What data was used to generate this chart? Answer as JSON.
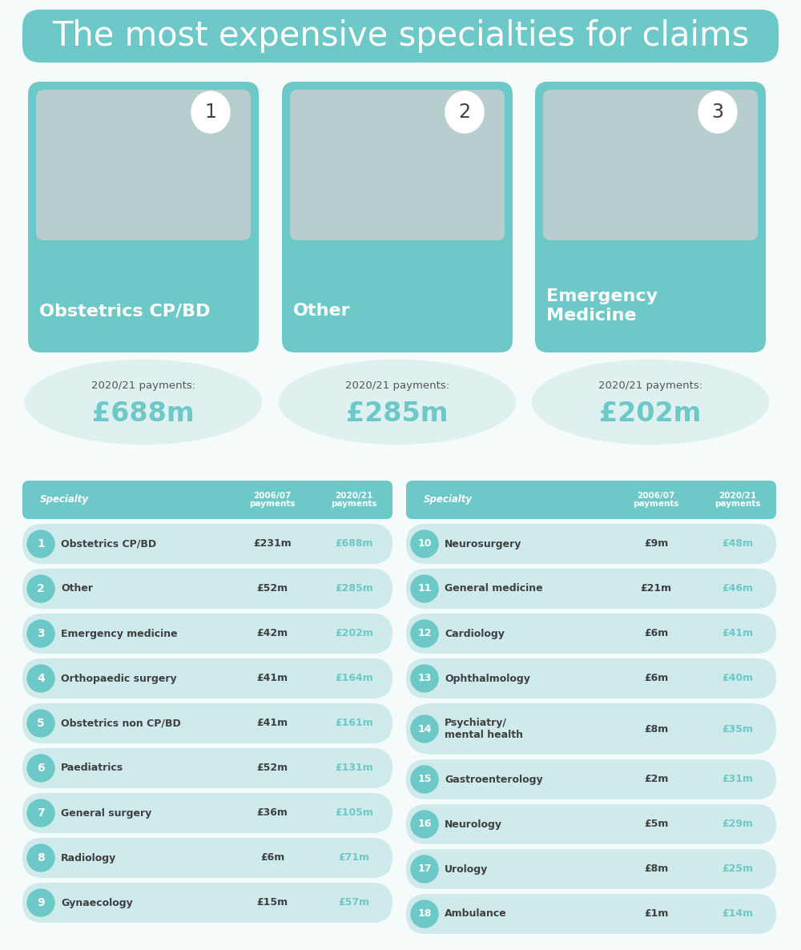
{
  "title": "The most expensive specialties for claims",
  "title_bg_color": "#7ecfd0",
  "title_color": "#ffffff",
  "title_fontsize": 30,
  "bg_color": "#f5fafa",
  "teal_color": "#6dc8c8",
  "light_teal_color": "#a8dbdb",
  "lighter_teal_color": "#ceeaea",
  "lightest_teal_color": "#dff0f0",
  "dark_text": "#404040",
  "teal_text": "#6dc8c8",
  "top3": [
    {
      "rank": "1",
      "name": "Obstetrics CP/BD",
      "payments_label": "2020/21 payments:",
      "payment": "£688m",
      "img_color": "#b0c8c8"
    },
    {
      "rank": "2",
      "name": "Other",
      "payments_label": "2020/21 payments:",
      "payment": "£285m",
      "img_color": "#b0c8c8"
    },
    {
      "rank": "3",
      "name": "Emergency\nMedicine",
      "payments_label": "2020/21 payments:",
      "payment": "£202m",
      "img_color": "#b0c8c8"
    }
  ],
  "header": [
    "Specialty",
    "2006/07\npayments",
    "2020/21\npayments"
  ],
  "left_rows": [
    {
      "rank": "1",
      "specialty": "Obstetrics CP/BD",
      "pay0607": "£231m",
      "pay2021": "£688m"
    },
    {
      "rank": "2",
      "specialty": "Other",
      "pay0607": "£52m",
      "pay2021": "£285m"
    },
    {
      "rank": "3",
      "specialty": "Emergency medicine",
      "pay0607": "£42m",
      "pay2021": "£202m"
    },
    {
      "rank": "4",
      "specialty": "Orthopaedic surgery",
      "pay0607": "£41m",
      "pay2021": "£164m"
    },
    {
      "rank": "5",
      "specialty": "Obstetrics non CP/BD",
      "pay0607": "£41m",
      "pay2021": "£161m"
    },
    {
      "rank": "6",
      "specialty": "Paediatrics",
      "pay0607": "£52m",
      "pay2021": "£131m"
    },
    {
      "rank": "7",
      "specialty": "General surgery",
      "pay0607": "£36m",
      "pay2021": "£105m"
    },
    {
      "rank": "8",
      "specialty": "Radiology",
      "pay0607": "£6m",
      "pay2021": "£71m"
    },
    {
      "rank": "9",
      "specialty": "Gynaecology",
      "pay0607": "£15m",
      "pay2021": "£57m"
    }
  ],
  "right_rows": [
    {
      "rank": "10",
      "specialty": "Neurosurgery",
      "pay0607": "£9m",
      "pay2021": "£48m"
    },
    {
      "rank": "11",
      "specialty": "General medicine",
      "pay0607": "£21m",
      "pay2021": "£46m"
    },
    {
      "rank": "12",
      "specialty": "Cardiology",
      "pay0607": "£6m",
      "pay2021": "£41m"
    },
    {
      "rank": "13",
      "specialty": "Ophthalmology",
      "pay0607": "£6m",
      "pay2021": "£40m"
    },
    {
      "rank": "14",
      "specialty": "Psychiatry/\nmental health",
      "pay0607": "£8m",
      "pay2021": "£35m"
    },
    {
      "rank": "15",
      "specialty": "Gastroenterology",
      "pay0607": "£2m",
      "pay2021": "£31m"
    },
    {
      "rank": "16",
      "specialty": "Neurology",
      "pay0607": "£5m",
      "pay2021": "£29m"
    },
    {
      "rank": "17",
      "specialty": "Urology",
      "pay0607": "£8m",
      "pay2021": "£25m"
    },
    {
      "rank": "18",
      "specialty": "Ambulance",
      "pay0607": "£1m",
      "pay2021": "£14m"
    }
  ]
}
